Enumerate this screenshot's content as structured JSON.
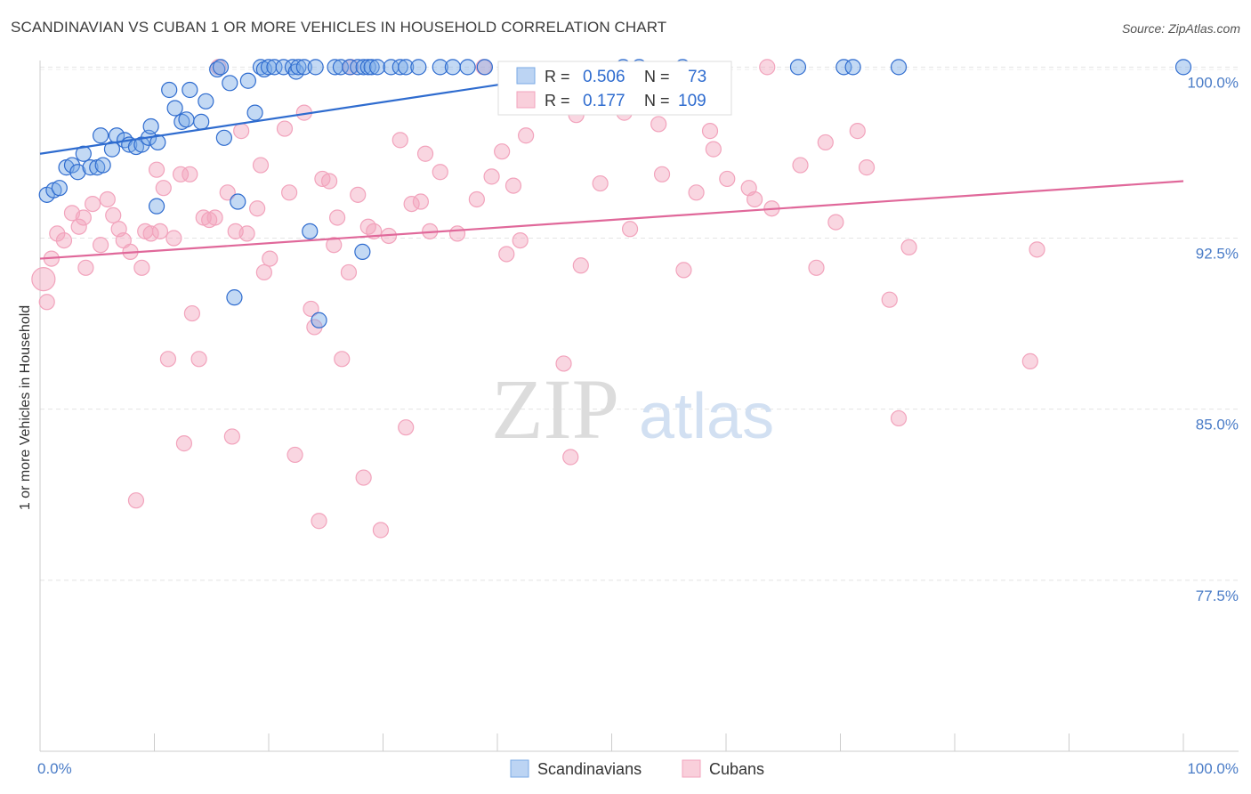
{
  "title": "SCANDINAVIAN VS CUBAN 1 OR MORE VEHICLES IN HOUSEHOLD CORRELATION CHART",
  "source": "Source: ZipAtlas.com",
  "watermark": {
    "zip": "ZIP",
    "atlas": "atlas"
  },
  "chart_data": {
    "type": "scatter",
    "title": "SCANDINAVIAN VS CUBAN 1 OR MORE VEHICLES IN HOUSEHOLD CORRELATION CHART",
    "xlabel": "",
    "ylabel": "1 or more Vehicles in Household",
    "xlim": [
      0,
      100
    ],
    "ylim": [
      70.0,
      100.6
    ],
    "x_tick_labels": [
      "0.0%",
      "100.0%"
    ],
    "y_ticks": [
      {
        "value": 100.0,
        "label": "100.0%"
      },
      {
        "value": 92.5,
        "label": "92.5%"
      },
      {
        "value": 85.0,
        "label": "85.0%"
      },
      {
        "value": 77.5,
        "label": "77.5%"
      }
    ],
    "grid": "horizontal dashed",
    "legend_position": "bottom-center",
    "series": [
      {
        "name": "Scandinavians",
        "color": "#7aaae6",
        "line_color": "#2f6ccf",
        "R": "0.506",
        "N": "73",
        "trend": {
          "x": [
            0,
            53
          ],
          "y": [
            96.2,
            100.2
          ]
        },
        "points": [
          [
            0.6,
            94.4
          ],
          [
            1.2,
            94.6
          ],
          [
            1.7,
            94.7
          ],
          [
            2.3,
            95.6
          ],
          [
            2.8,
            95.7
          ],
          [
            3.3,
            95.4
          ],
          [
            3.8,
            96.2
          ],
          [
            4.4,
            95.6
          ],
          [
            5.0,
            95.6
          ],
          [
            5.5,
            95.7
          ],
          [
            5.3,
            97.0
          ],
          [
            6.3,
            96.4
          ],
          [
            6.7,
            97.0
          ],
          [
            7.4,
            96.8
          ],
          [
            7.8,
            96.6
          ],
          [
            8.4,
            96.5
          ],
          [
            8.9,
            96.6
          ],
          [
            9.5,
            96.9
          ],
          [
            9.7,
            97.4
          ],
          [
            10.3,
            96.7
          ],
          [
            10.2,
            93.9
          ],
          [
            11.3,
            99.0
          ],
          [
            11.8,
            98.2
          ],
          [
            12.4,
            97.6
          ],
          [
            12.8,
            97.7
          ],
          [
            13.1,
            99.0
          ],
          [
            14.1,
            97.6
          ],
          [
            14.5,
            98.5
          ],
          [
            15.5,
            99.9
          ],
          [
            15.8,
            100.0
          ],
          [
            16.1,
            96.9
          ],
          [
            16.6,
            99.3
          ],
          [
            17.3,
            94.1
          ],
          [
            17.0,
            89.9
          ],
          [
            18.2,
            99.4
          ],
          [
            18.8,
            98.0
          ],
          [
            19.3,
            100.0
          ],
          [
            19.6,
            99.9
          ],
          [
            20.0,
            100.0
          ],
          [
            20.5,
            100.0
          ],
          [
            21.3,
            100.0
          ],
          [
            22.1,
            100.0
          ],
          [
            22.4,
            99.8
          ],
          [
            22.6,
            100.0
          ],
          [
            23.1,
            100.0
          ],
          [
            23.6,
            92.8
          ],
          [
            24.1,
            100.0
          ],
          [
            24.4,
            88.9
          ],
          [
            25.8,
            100.0
          ],
          [
            26.3,
            100.0
          ],
          [
            27.1,
            100.0
          ],
          [
            27.8,
            100.0
          ],
          [
            28.3,
            100.0
          ],
          [
            28.7,
            100.0
          ],
          [
            29.0,
            100.0
          ],
          [
            29.5,
            100.0
          ],
          [
            28.2,
            91.9
          ],
          [
            30.7,
            100.0
          ],
          [
            31.5,
            100.0
          ],
          [
            32.0,
            100.0
          ],
          [
            33.1,
            100.0
          ],
          [
            35.0,
            100.0
          ],
          [
            36.1,
            100.0
          ],
          [
            37.4,
            100.0
          ],
          [
            38.9,
            100.0
          ],
          [
            51.0,
            100.0
          ],
          [
            52.4,
            100.0
          ],
          [
            56.2,
            100.0
          ],
          [
            66.3,
            100.0
          ],
          [
            70.3,
            100.0
          ],
          [
            71.1,
            100.0
          ],
          [
            75.1,
            100.0
          ],
          [
            100.0,
            100.0
          ]
        ]
      },
      {
        "name": "Cubans",
        "color": "#f2a3bc",
        "line_color": "#e0689a",
        "R": "0.177",
        "N": "109",
        "trend": {
          "x": [
            0,
            100
          ],
          "y": [
            91.6,
            95.0
          ]
        },
        "points": [
          [
            0.3,
            90.7
          ],
          [
            0.6,
            89.7
          ],
          [
            1.0,
            91.6
          ],
          [
            1.5,
            92.7
          ],
          [
            2.1,
            92.4
          ],
          [
            2.8,
            93.6
          ],
          [
            3.4,
            93.0
          ],
          [
            3.8,
            93.4
          ],
          [
            4.0,
            91.2
          ],
          [
            4.6,
            94.0
          ],
          [
            5.3,
            92.2
          ],
          [
            5.9,
            94.2
          ],
          [
            6.4,
            93.5
          ],
          [
            6.9,
            92.9
          ],
          [
            7.3,
            92.4
          ],
          [
            7.9,
            91.9
          ],
          [
            8.4,
            81.0
          ],
          [
            8.9,
            91.2
          ],
          [
            9.2,
            92.8
          ],
          [
            9.7,
            92.7
          ],
          [
            10.2,
            95.5
          ],
          [
            10.5,
            92.8
          ],
          [
            10.8,
            94.7
          ],
          [
            11.2,
            87.2
          ],
          [
            11.7,
            92.5
          ],
          [
            12.3,
            95.3
          ],
          [
            12.6,
            83.5
          ],
          [
            13.1,
            95.3
          ],
          [
            13.3,
            89.2
          ],
          [
            13.9,
            87.2
          ],
          [
            14.3,
            93.4
          ],
          [
            14.8,
            93.3
          ],
          [
            15.3,
            93.4
          ],
          [
            15.6,
            100.0
          ],
          [
            16.4,
            94.5
          ],
          [
            16.8,
            83.8
          ],
          [
            17.1,
            92.8
          ],
          [
            17.6,
            97.2
          ],
          [
            18.1,
            92.7
          ],
          [
            19.0,
            93.8
          ],
          [
            19.3,
            95.7
          ],
          [
            19.6,
            91.0
          ],
          [
            20.1,
            91.6
          ],
          [
            21.4,
            97.3
          ],
          [
            21.8,
            94.5
          ],
          [
            22.3,
            83.0
          ],
          [
            23.1,
            98.0
          ],
          [
            23.7,
            89.4
          ],
          [
            24.0,
            88.6
          ],
          [
            24.4,
            80.1
          ],
          [
            24.7,
            95.1
          ],
          [
            25.3,
            95.0
          ],
          [
            25.7,
            92.2
          ],
          [
            26.0,
            93.4
          ],
          [
            26.4,
            87.2
          ],
          [
            27.0,
            91.0
          ],
          [
            27.2,
            100.0
          ],
          [
            27.8,
            94.4
          ],
          [
            28.3,
            82.0
          ],
          [
            28.7,
            93.0
          ],
          [
            29.2,
            92.8
          ],
          [
            29.8,
            79.7
          ],
          [
            30.5,
            92.6
          ],
          [
            31.5,
            96.8
          ],
          [
            32.0,
            84.2
          ],
          [
            32.5,
            94.0
          ],
          [
            33.3,
            94.1
          ],
          [
            33.7,
            96.2
          ],
          [
            34.1,
            92.8
          ],
          [
            35.0,
            95.4
          ],
          [
            36.5,
            92.7
          ],
          [
            38.2,
            94.2
          ],
          [
            38.8,
            100.0
          ],
          [
            39.5,
            95.2
          ],
          [
            40.4,
            96.3
          ],
          [
            40.8,
            91.8
          ],
          [
            41.4,
            94.8
          ],
          [
            42.0,
            92.4
          ],
          [
            42.5,
            97.0
          ],
          [
            45.8,
            87.0
          ],
          [
            46.4,
            82.9
          ],
          [
            46.9,
            97.9
          ],
          [
            47.3,
            91.3
          ],
          [
            49.0,
            94.9
          ],
          [
            50.0,
            98.9
          ],
          [
            51.1,
            98.0
          ],
          [
            51.6,
            92.9
          ],
          [
            54.1,
            97.5
          ],
          [
            54.4,
            95.3
          ],
          [
            56.3,
            91.1
          ],
          [
            57.4,
            94.5
          ],
          [
            58.6,
            97.2
          ],
          [
            58.9,
            96.4
          ],
          [
            60.1,
            95.1
          ],
          [
            62.0,
            94.7
          ],
          [
            62.5,
            94.2
          ],
          [
            63.6,
            100.0
          ],
          [
            64.0,
            93.8
          ],
          [
            66.5,
            95.7
          ],
          [
            67.9,
            91.2
          ],
          [
            68.7,
            96.7
          ],
          [
            69.6,
            93.2
          ],
          [
            71.5,
            97.2
          ],
          [
            72.3,
            95.6
          ],
          [
            74.3,
            89.8
          ],
          [
            75.1,
            84.6
          ],
          [
            76.0,
            92.1
          ],
          [
            86.6,
            87.1
          ],
          [
            87.2,
            92.0
          ]
        ]
      }
    ]
  }
}
